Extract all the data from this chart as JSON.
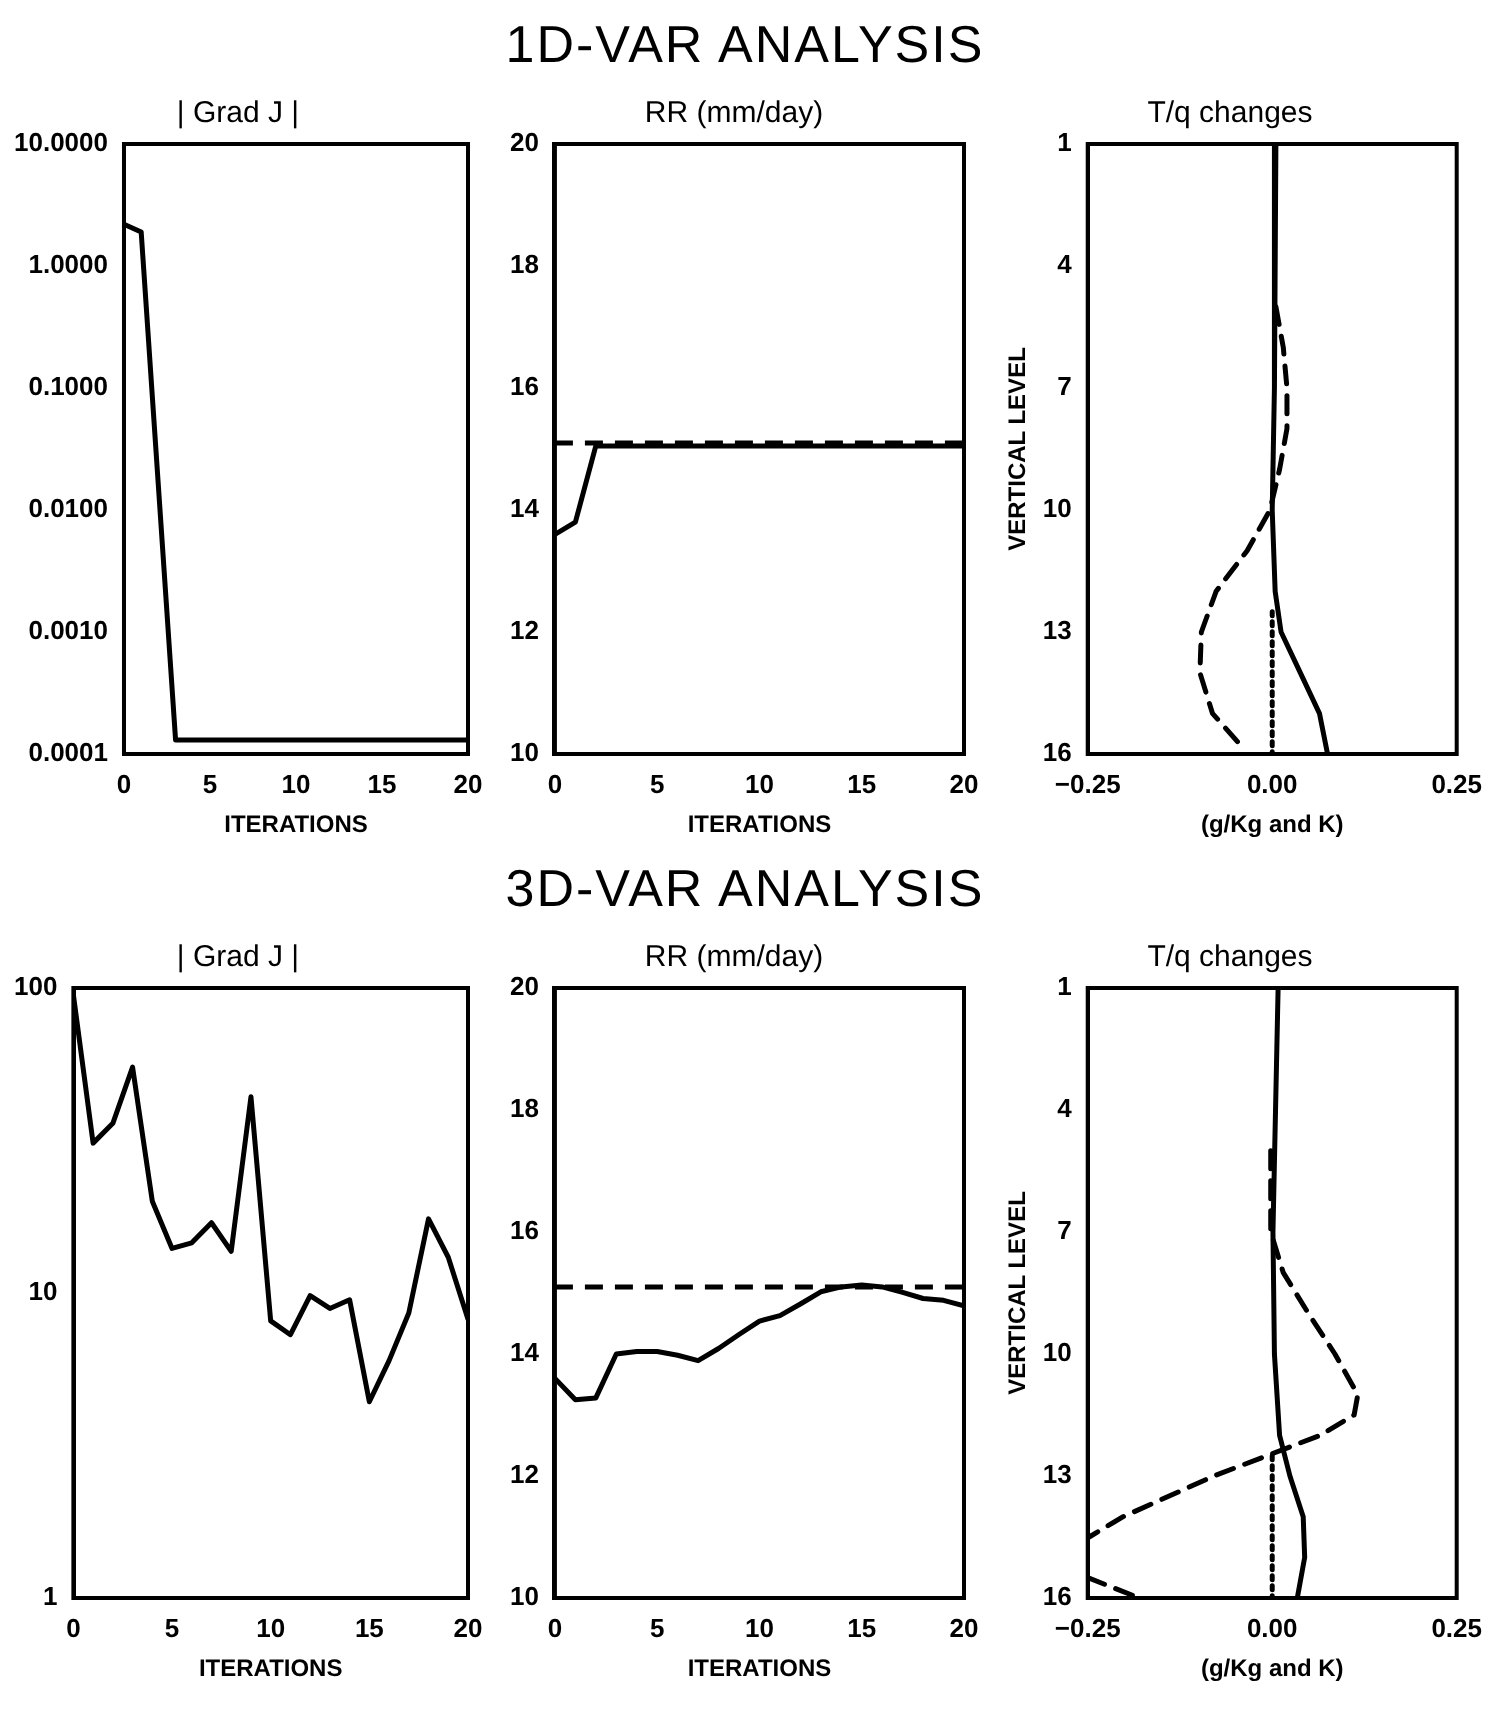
{
  "chart_data": [
    {
      "type": "other",
      "title": "1D-VAR ANALYSIS"
    },
    {
      "type": "line",
      "title": "| Grad J |",
      "xlabel": "ITERATIONS",
      "log": "y",
      "xlim": [
        0,
        20
      ],
      "xticks": [
        0,
        5,
        10,
        15,
        20
      ],
      "ylim": [
        0.0001,
        10
      ],
      "yticks": [
        {
          "value": 0.0001,
          "label": "0.0001"
        },
        {
          "value": 0.001,
          "label": "0.0010"
        },
        {
          "value": 0.01,
          "label": "0.0100"
        },
        {
          "value": 0.1,
          "label": "0.1000"
        },
        {
          "value": 1,
          "label": "1.0000"
        },
        {
          "value": 10,
          "label": "10.0000"
        }
      ],
      "grid": false,
      "legend": false,
      "marker": "none",
      "series": [
        {
          "color": "#000000",
          "line_style": "solid",
          "x": [
            0,
            1,
            3,
            20
          ],
          "values": [
            2.2,
            1.9,
            0.00013,
            0.00013
          ]
        }
      ]
    },
    {
      "type": "line",
      "title": "RR (mm/day)",
      "xlabel": "ITERATIONS",
      "xlim": [
        0,
        20
      ],
      "xticks": [
        0,
        5,
        10,
        15,
        20
      ],
      "ylim": [
        10,
        20
      ],
      "yticks": [
        10,
        12,
        14,
        16,
        18,
        20
      ],
      "grid": false,
      "legend": false,
      "marker": "none",
      "ref_lines": [
        {
          "axis": "y",
          "value": 15.1,
          "color": "#000000",
          "line_style": "dashed"
        }
      ],
      "series": [
        {
          "color": "#000000",
          "line_style": "solid",
          "x": [
            0,
            1,
            2,
            20
          ],
          "values": [
            13.6,
            13.8,
            15.05,
            15.05
          ]
        }
      ]
    },
    {
      "type": "line",
      "title": "T/q changes",
      "xlabel": "(g/Kg and K)",
      "ylabel": "VERTICAL LEVEL",
      "xlim": [
        -0.25,
        0.25
      ],
      "xticks": [
        {
          "value": -0.25,
          "label": "−0.25"
        },
        {
          "value": 0,
          "label": "0.00"
        },
        {
          "value": 0.25,
          "label": "0.25"
        }
      ],
      "ylim": [
        16,
        1
      ],
      "yticks": [
        1,
        4,
        7,
        10,
        13,
        16
      ],
      "grid": false,
      "legend": false,
      "marker": "none",
      "series": [
        {
          "color": "#000000",
          "line_style": "solid",
          "x": [
            0.005,
            0.003,
            0.0,
            0.004,
            0.012,
            0.038,
            0.064,
            0.075
          ],
          "values": [
            1,
            7,
            10,
            12,
            13,
            14,
            15,
            16
          ]
        },
        {
          "color": "#000000",
          "line_style": "dashed",
          "x": [
            0.005,
            0.015,
            0.02,
            0.02,
            0.01,
            -0.003,
            -0.034,
            -0.076,
            -0.096,
            -0.098,
            -0.081,
            -0.042
          ],
          "values": [
            5,
            6,
            7,
            8,
            9,
            10,
            11,
            12,
            13,
            14,
            15,
            15.8
          ]
        },
        {
          "color": "#000000",
          "line_style": "dotted",
          "x": [
            0,
            0
          ],
          "values": [
            12.5,
            16
          ]
        }
      ]
    },
    {
      "type": "other",
      "title": "3D-VAR ANALYSIS"
    },
    {
      "type": "line",
      "title": "| Grad J |",
      "xlabel": "ITERATIONS",
      "log": "y",
      "xlim": [
        0,
        20
      ],
      "xticks": [
        0,
        5,
        10,
        15,
        20
      ],
      "ylim": [
        1,
        100
      ],
      "yticks": [
        1,
        10,
        100
      ],
      "grid": false,
      "legend": false,
      "marker": "none",
      "series": [
        {
          "color": "#000000",
          "line_style": "solid",
          "x": [
            0,
            1,
            2,
            3,
            4,
            5,
            6,
            7,
            8,
            9,
            10,
            11,
            12,
            13,
            14,
            15,
            16,
            17,
            18,
            19,
            20
          ],
          "values": [
            95,
            31,
            36,
            55,
            20,
            14,
            14.6,
            17,
            13.7,
            44,
            8.1,
            7.3,
            9.8,
            8.9,
            9.5,
            4.4,
            6.0,
            8.6,
            17.5,
            13.1,
            8.2
          ]
        }
      ]
    },
    {
      "type": "line",
      "title": "RR (mm/day)",
      "xlabel": "ITERATIONS",
      "xlim": [
        0,
        20
      ],
      "xticks": [
        0,
        5,
        10,
        15,
        20
      ],
      "ylim": [
        10,
        20
      ],
      "yticks": [
        10,
        12,
        14,
        16,
        18,
        20
      ],
      "grid": false,
      "legend": false,
      "marker": "none",
      "ref_lines": [
        {
          "axis": "y",
          "value": 15.1,
          "color": "#000000",
          "line_style": "dashed"
        }
      ],
      "series": [
        {
          "color": "#000000",
          "line_style": "solid",
          "x": [
            0,
            1,
            2,
            3,
            4,
            5,
            6,
            7,
            8,
            9,
            10,
            11,
            12,
            13,
            14,
            15,
            16,
            17,
            18,
            19,
            20
          ],
          "values": [
            13.6,
            13.25,
            13.28,
            14.0,
            14.04,
            14.04,
            13.98,
            13.89,
            14.09,
            14.32,
            14.54,
            14.63,
            14.82,
            15.02,
            15.1,
            15.13,
            15.1,
            15.01,
            14.91,
            14.88,
            14.79
          ]
        }
      ]
    },
    {
      "type": "line",
      "title": "T/q changes",
      "xlabel": "(g/Kg and K)",
      "ylabel": "VERTICAL LEVEL",
      "xlim": [
        -0.25,
        0.25
      ],
      "xticks": [
        {
          "value": -0.25,
          "label": "−0.25"
        },
        {
          "value": 0,
          "label": "0.00"
        },
        {
          "value": 0.25,
          "label": "0.25"
        }
      ],
      "ylim": [
        16,
        1
      ],
      "yticks": [
        1,
        4,
        7,
        10,
        13,
        16
      ],
      "grid": false,
      "legend": false,
      "marker": "none",
      "series": [
        {
          "color": "#000000",
          "line_style": "solid",
          "x": [
            0.008,
            0.001,
            0.003,
            0.01,
            0.024,
            0.042,
            0.044,
            0.034
          ],
          "values": [
            1,
            7,
            10,
            12,
            13,
            14,
            15,
            16
          ]
        },
        {
          "color": "#000000",
          "line_style": "dashed",
          "x": [
            -0.002,
            -0.002,
            0.015,
            0.049,
            0.085,
            0.116,
            0.111,
            0.065,
            -0.007,
            -0.079,
            -0.202,
            -0.248,
            null,
            -0.25,
            -0.18
          ],
          "values": [
            5,
            7,
            8,
            9,
            10,
            11,
            11.5,
            12,
            12.5,
            13,
            14,
            14.5,
            null,
            15.5,
            16
          ]
        },
        {
          "color": "#000000",
          "line_style": "dotted",
          "x": [
            0,
            0
          ],
          "values": [
            12.5,
            16
          ]
        }
      ]
    }
  ]
}
